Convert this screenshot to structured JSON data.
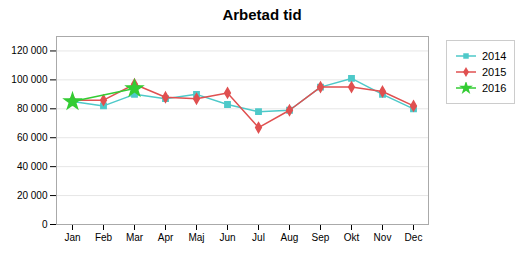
{
  "chart_data": {
    "type": "line",
    "title": "Arbetad tid",
    "categories": [
      "Jan",
      "Feb",
      "Mar",
      "Apr",
      "Maj",
      "Jun",
      "Jul",
      "Aug",
      "Sep",
      "Okt",
      "Nov",
      "Dec"
    ],
    "series": [
      {
        "name": "2014",
        "color": "#4ec9c9",
        "marker": "square",
        "values": [
          85000,
          82000,
          90000,
          87000,
          90000,
          83000,
          78000,
          79000,
          95000,
          101000,
          90000,
          80000
        ]
      },
      {
        "name": "2015",
        "color": "#e05050",
        "marker": "diamond",
        "values": [
          86000,
          86000,
          97000,
          88000,
          87000,
          91000,
          67000,
          79000,
          95000,
          95000,
          92000,
          82000
        ]
      },
      {
        "name": "2016",
        "color": "#33cc33",
        "marker": "star",
        "values": [
          85000,
          null,
          94000,
          null,
          null,
          null,
          null,
          null,
          null,
          null,
          null,
          null
        ]
      }
    ],
    "ylim": [
      0,
      130000
    ],
    "yticks": [
      0,
      {
        "value": 20000,
        "label": "20 000"
      },
      {
        "value": 40000,
        "label": "40 000"
      },
      {
        "value": 60000,
        "label": "60 000"
      },
      {
        "value": 80000,
        "label": "80 000"
      },
      {
        "value": 100000,
        "label": "100 000"
      },
      {
        "value": 120000,
        "label": "120 000"
      }
    ],
    "grid": true,
    "legend": "right"
  }
}
